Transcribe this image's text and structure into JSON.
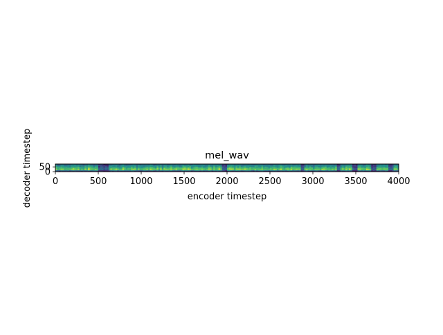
{
  "chart_data": {
    "type": "heatmap",
    "title": "mel_wav",
    "xlabel": "encoder timestep",
    "ylabel": "decoder timestep",
    "xlim": [
      0,
      4000
    ],
    "ylim": [
      0,
      80
    ],
    "x_ticks": [
      0,
      500,
      1000,
      1500,
      2000,
      2500,
      3000,
      3500,
      4000
    ],
    "y_ticks": [
      0,
      50
    ],
    "colormap": "viridis",
    "grid": false,
    "n_frames": 4000,
    "n_bins": 80,
    "band_profile": [
      0.18,
      0.35,
      0.62,
      0.82,
      0.74,
      0.68,
      0.6,
      0.55,
      0.5,
      0.45,
      0.42,
      0.38
    ],
    "dark_columns": [
      520,
      580,
      1960,
      2870,
      3290,
      3480,
      3700,
      3900
    ]
  }
}
